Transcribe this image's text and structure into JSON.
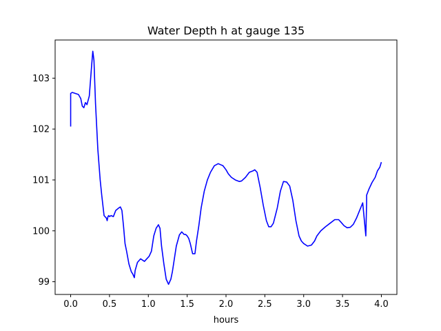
{
  "chart_data": {
    "type": "line",
    "title": "Water Depth h at gauge 135",
    "xlabel": "hours",
    "ylabel": "",
    "xlim": [
      -0.2,
      4.2
    ],
    "ylim": [
      98.75,
      103.75
    ],
    "xticks": [
      0.0,
      0.5,
      1.0,
      1.5,
      2.0,
      2.5,
      3.0,
      3.5,
      4.0
    ],
    "xtick_labels": [
      "0.0",
      "0.5",
      "1.0",
      "1.5",
      "2.0",
      "2.5",
      "3.0",
      "3.5",
      "4.0"
    ],
    "yticks": [
      99,
      100,
      101,
      102,
      103
    ],
    "ytick_labels": [
      "99",
      "100",
      "101",
      "102",
      "103"
    ],
    "grid": false,
    "series": [
      {
        "color": "#0000ff",
        "x": [
          0.0,
          0.0,
          0.02,
          0.06,
          0.1,
          0.13,
          0.15,
          0.17,
          0.19,
          0.21,
          0.24,
          0.27,
          0.285,
          0.3,
          0.32,
          0.35,
          0.38,
          0.4,
          0.43,
          0.46,
          0.47,
          0.48,
          0.49,
          0.5,
          0.52,
          0.55,
          0.58,
          0.62,
          0.64,
          0.66,
          0.68,
          0.7,
          0.72,
          0.75,
          0.78,
          0.8,
          0.82,
          0.83,
          0.86,
          0.9,
          0.93,
          0.95,
          0.98,
          1.01,
          1.04,
          1.07,
          1.1,
          1.13,
          1.15,
          1.17,
          1.2,
          1.23,
          1.26,
          1.29,
          1.31,
          1.33,
          1.36,
          1.4,
          1.43,
          1.46,
          1.48,
          1.5,
          1.52,
          1.54,
          1.57,
          1.6,
          1.62,
          1.65,
          1.68,
          1.72,
          1.76,
          1.8,
          1.85,
          1.9,
          1.93,
          1.96,
          2.0,
          2.03,
          2.07,
          2.12,
          2.17,
          2.2,
          2.25,
          2.3,
          2.35,
          2.37,
          2.4,
          2.44,
          2.48,
          2.52,
          2.55,
          2.58,
          2.61,
          2.63,
          2.66,
          2.7,
          2.74,
          2.78,
          2.82,
          2.86,
          2.9,
          2.94,
          2.97,
          3.0,
          3.05,
          3.1,
          3.14,
          3.17,
          3.22,
          3.28,
          3.34,
          3.4,
          3.45,
          3.48,
          3.52,
          3.56,
          3.6,
          3.64,
          3.68,
          3.72,
          3.76,
          3.8,
          3.81,
          3.81,
          3.81,
          3.84,
          3.88,
          3.92,
          3.95,
          3.98,
          4.0
        ],
        "values": [
          102.05,
          102.7,
          102.72,
          102.7,
          102.68,
          102.6,
          102.45,
          102.42,
          102.52,
          102.48,
          102.65,
          103.25,
          103.53,
          103.35,
          102.5,
          101.6,
          101.0,
          100.7,
          100.3,
          100.25,
          100.2,
          100.28,
          100.3,
          100.28,
          100.3,
          100.28,
          100.4,
          100.45,
          100.47,
          100.4,
          100.1,
          99.75,
          99.6,
          99.35,
          99.2,
          99.15,
          99.08,
          99.22,
          99.38,
          99.45,
          99.42,
          99.4,
          99.45,
          99.5,
          99.6,
          99.9,
          100.05,
          100.12,
          100.05,
          99.7,
          99.35,
          99.05,
          98.95,
          99.05,
          99.2,
          99.4,
          99.7,
          99.92,
          99.98,
          99.93,
          99.93,
          99.9,
          99.85,
          99.75,
          99.55,
          99.55,
          99.8,
          100.1,
          100.45,
          100.78,
          101.0,
          101.15,
          101.28,
          101.32,
          101.3,
          101.28,
          101.2,
          101.12,
          101.05,
          101.0,
          100.97,
          100.98,
          101.05,
          101.15,
          101.18,
          101.2,
          101.15,
          100.85,
          100.5,
          100.2,
          100.08,
          100.08,
          100.15,
          100.27,
          100.45,
          100.78,
          100.97,
          100.96,
          100.88,
          100.6,
          100.2,
          99.9,
          99.8,
          99.75,
          99.7,
          99.72,
          99.8,
          99.9,
          100.0,
          100.08,
          100.15,
          100.22,
          100.22,
          100.17,
          100.1,
          100.06,
          100.07,
          100.13,
          100.25,
          100.4,
          100.55,
          99.9,
          100.55,
          100.6,
          100.7,
          100.82,
          100.95,
          101.05,
          101.18,
          101.25,
          101.35
        ]
      }
    ]
  }
}
